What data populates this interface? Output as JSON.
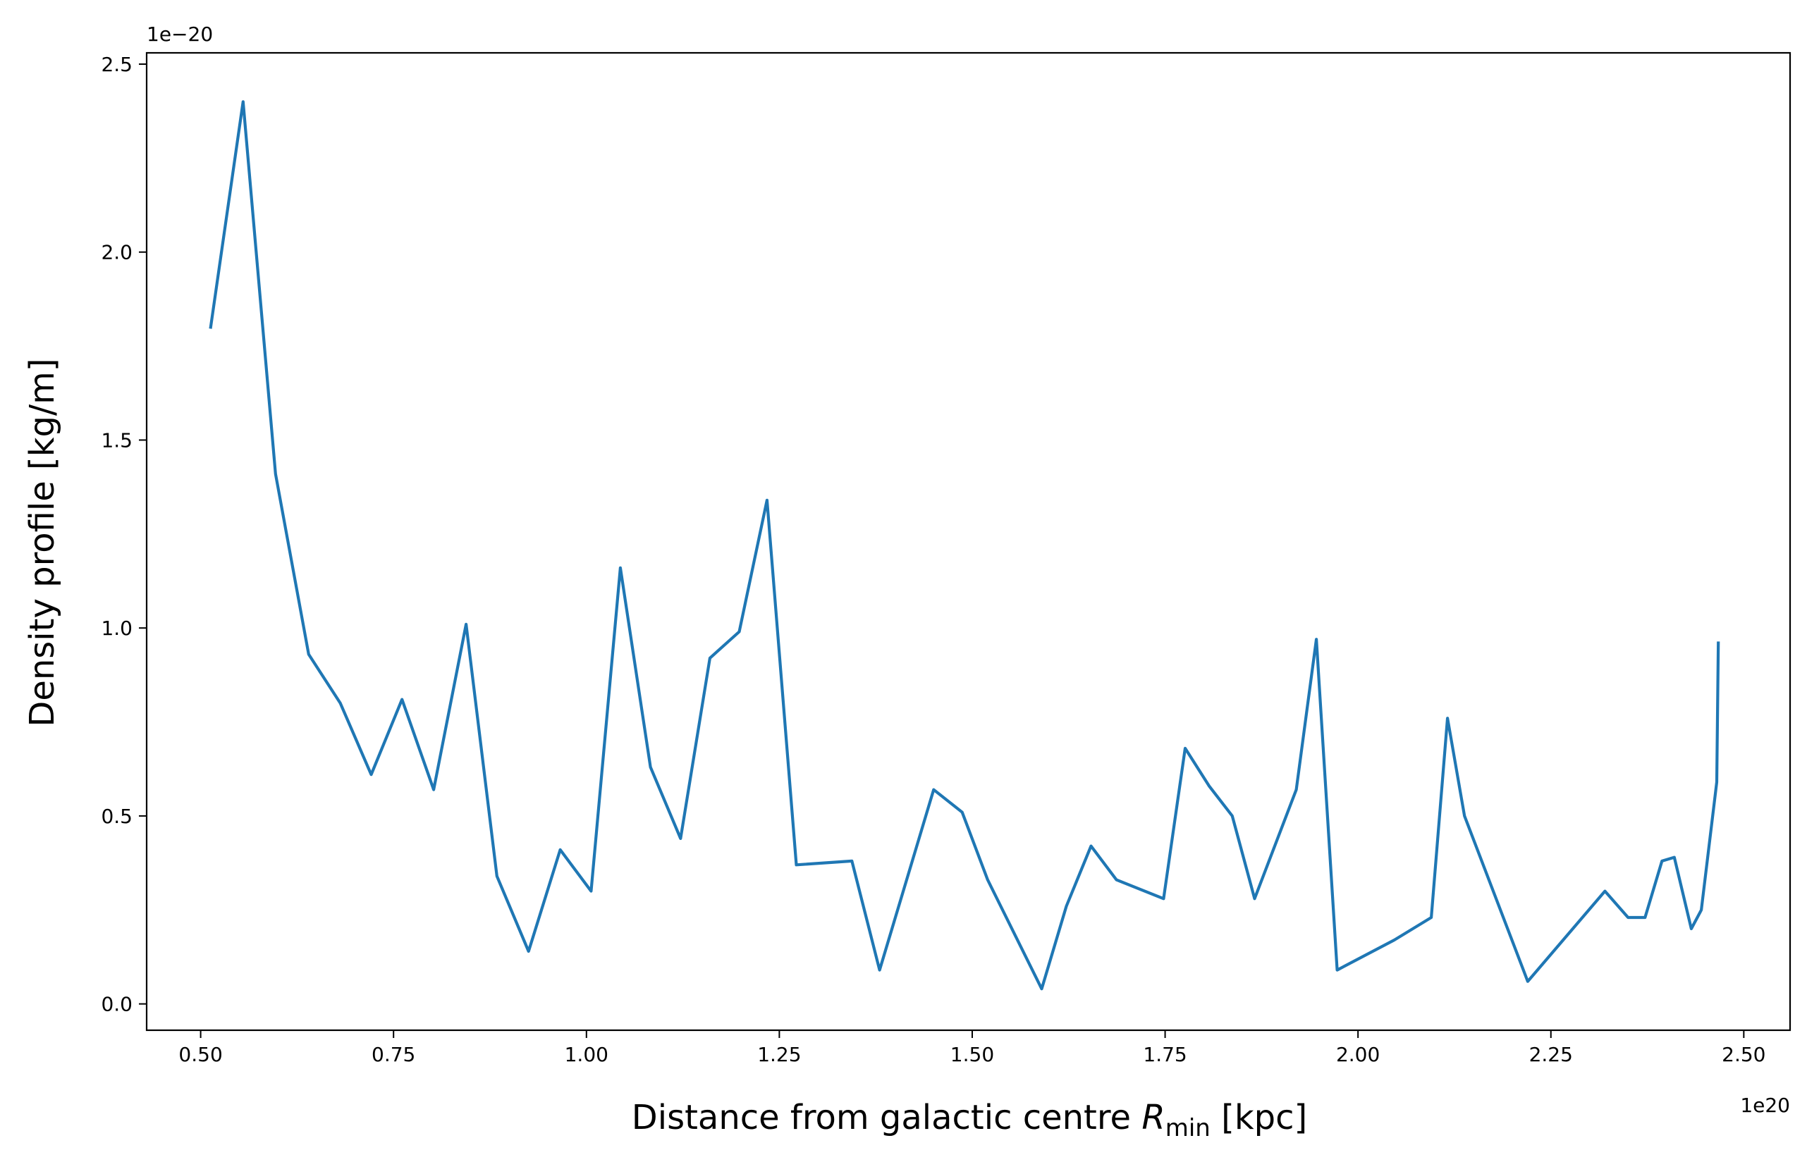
{
  "chart_data": {
    "type": "line",
    "xlabel": "Distance from galactic centre",
    "xlabel_symbol": "R",
    "xlabel_subscript": "min",
    "xlabel_unit": "[kpc]",
    "ylabel": "Density profile [kg/m]",
    "x_offset_label": "1e20",
    "y_offset_label": "1e−20",
    "xlim": [
      0.43,
      2.56
    ],
    "ylim": [
      -0.07,
      2.53
    ],
    "xticks": [
      0.5,
      0.75,
      1.0,
      1.25,
      1.5,
      1.75,
      2.0,
      2.25,
      2.5
    ],
    "xtick_labels": [
      "0.50",
      "0.75",
      "1.00",
      "1.25",
      "1.50",
      "1.75",
      "2.00",
      "2.25",
      "2.50"
    ],
    "yticks": [
      0.0,
      0.5,
      1.0,
      1.5,
      2.0,
      2.5
    ],
    "ytick_labels": [
      "0.0",
      "0.5",
      "1.0",
      "1.5",
      "2.0",
      "2.5"
    ],
    "grid": false,
    "legend": "none",
    "series": [
      {
        "color": "#1f77b4",
        "x": [
          0.513,
          0.555,
          0.597,
          0.64,
          0.681,
          0.721,
          0.761,
          0.802,
          0.844,
          0.884,
          0.925,
          0.966,
          1.006,
          1.044,
          1.083,
          1.122,
          1.16,
          1.198,
          1.234,
          1.272,
          1.344,
          1.38,
          1.45,
          1.487,
          1.52,
          1.59,
          1.622,
          1.654,
          1.687,
          1.748,
          1.776,
          1.807,
          1.837,
          1.866,
          1.92,
          1.946,
          1.973,
          2.047,
          2.095,
          2.116,
          2.138,
          2.22,
          2.32,
          2.35,
          2.372,
          2.394,
          2.41,
          2.432,
          2.445,
          2.465,
          2.467
        ],
        "y": [
          1.8,
          2.4,
          1.41,
          0.93,
          0.8,
          0.61,
          0.81,
          0.57,
          1.01,
          0.34,
          0.14,
          0.41,
          0.3,
          1.16,
          0.63,
          0.44,
          0.92,
          0.99,
          1.34,
          0.37,
          0.38,
          0.09,
          0.57,
          0.51,
          0.33,
          0.04,
          0.26,
          0.42,
          0.33,
          0.28,
          0.68,
          0.58,
          0.5,
          0.28,
          0.57,
          0.97,
          0.09,
          0.17,
          0.23,
          0.76,
          0.5,
          0.06,
          0.3,
          0.23,
          0.23,
          0.38,
          0.39,
          0.2,
          0.25,
          0.59,
          0.96
        ]
      }
    ]
  }
}
